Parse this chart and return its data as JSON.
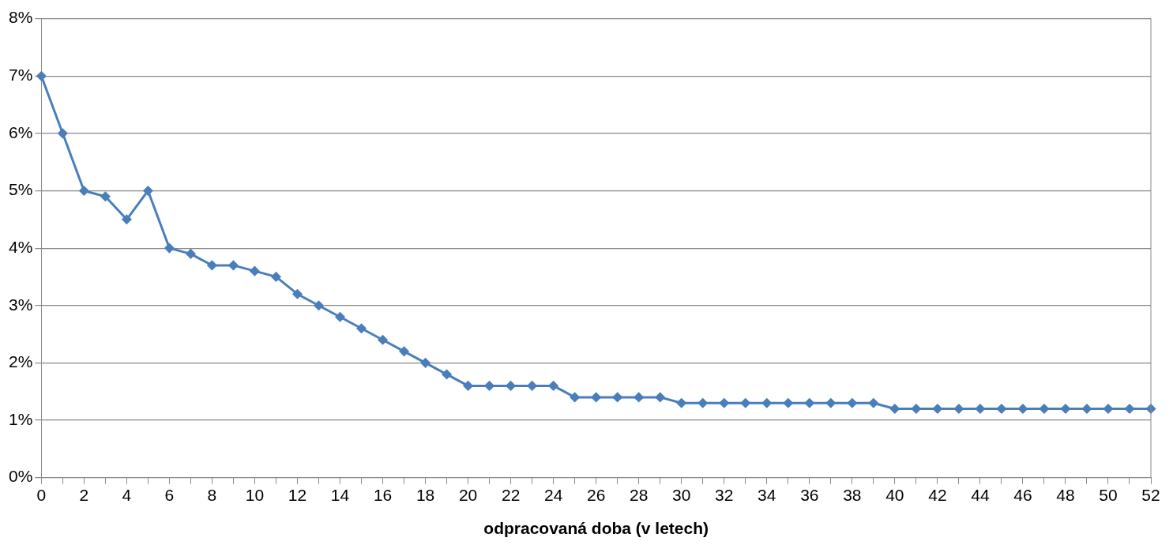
{
  "chart_data": {
    "type": "line",
    "xlabel": "odpracovaná doba (v letech)",
    "x": [
      0,
      1,
      2,
      3,
      4,
      5,
      6,
      7,
      8,
      9,
      10,
      11,
      12,
      13,
      14,
      15,
      16,
      17,
      18,
      19,
      20,
      21,
      22,
      23,
      24,
      25,
      26,
      27,
      28,
      29,
      30,
      31,
      32,
      33,
      34,
      35,
      36,
      37,
      38,
      39,
      40,
      41,
      42,
      43,
      44,
      45,
      46,
      47,
      48,
      49,
      50,
      51,
      52
    ],
    "series": [
      {
        "color": "#4a7ebb",
        "values": [
          7,
          6,
          5,
          4.9,
          4.5,
          5,
          4,
          3.9,
          3.7,
          3.7,
          3.6,
          3.5,
          3.2,
          3.0,
          2.8,
          2.6,
          2.4,
          2.2,
          2.0,
          1.8,
          1.6,
          1.6,
          1.6,
          1.6,
          1.6,
          1.4,
          1.4,
          1.4,
          1.4,
          1.4,
          1.3,
          1.3,
          1.3,
          1.3,
          1.3,
          1.3,
          1.3,
          1.3,
          1.3,
          1.3,
          1.2,
          1.2,
          1.2,
          1.2,
          1.2,
          1.2,
          1.2,
          1.2,
          1.2,
          1.2,
          1.2,
          1.2,
          1.2
        ]
      }
    ],
    "xlim": [
      0,
      52
    ],
    "xticks": [
      0,
      {
        "value": 1,
        "label": null
      },
      2,
      {
        "value": 3,
        "label": null
      },
      4,
      {
        "value": 5,
        "label": null
      },
      6,
      {
        "value": 7,
        "label": null
      },
      8,
      {
        "value": 9,
        "label": null
      },
      10,
      {
        "value": 11,
        "label": null
      },
      12,
      {
        "value": 13,
        "label": null
      },
      14,
      {
        "value": 15,
        "label": null
      },
      16,
      {
        "value": 17,
        "label": null
      },
      18,
      {
        "value": 19,
        "label": null
      },
      20,
      {
        "value": 21,
        "label": null
      },
      22,
      {
        "value": 23,
        "label": null
      },
      24,
      {
        "value": 25,
        "label": null
      },
      26,
      {
        "value": 27,
        "label": null
      },
      28,
      {
        "value": 29,
        "label": null
      },
      30,
      {
        "value": 31,
        "label": null
      },
      32,
      {
        "value": 33,
        "label": null
      },
      34,
      {
        "value": 35,
        "label": null
      },
      36,
      {
        "value": 37,
        "label": null
      },
      38,
      {
        "value": 39,
        "label": null
      },
      40,
      {
        "value": 41,
        "label": null
      },
      42,
      {
        "value": 43,
        "label": null
      },
      44,
      {
        "value": 45,
        "label": null
      },
      46,
      {
        "value": 47,
        "label": null
      },
      48,
      {
        "value": 49,
        "label": null
      },
      50,
      {
        "value": 51,
        "label": null
      },
      52
    ],
    "ylim": [
      0,
      8
    ],
    "yticks": [
      {
        "value": 0,
        "label": "0%"
      },
      {
        "value": 1,
        "label": "1%"
      },
      {
        "value": 2,
        "label": "2%"
      },
      {
        "value": 3,
        "label": "3%"
      },
      {
        "value": 4,
        "label": "4%"
      },
      {
        "value": 5,
        "label": "5%"
      },
      {
        "value": 6,
        "label": "6%"
      },
      {
        "value": 7,
        "label": "7%"
      },
      {
        "value": 8,
        "label": "8%"
      }
    ],
    "grid": "y",
    "legend": false,
    "marker": "diamond",
    "line_style": "solid"
  }
}
